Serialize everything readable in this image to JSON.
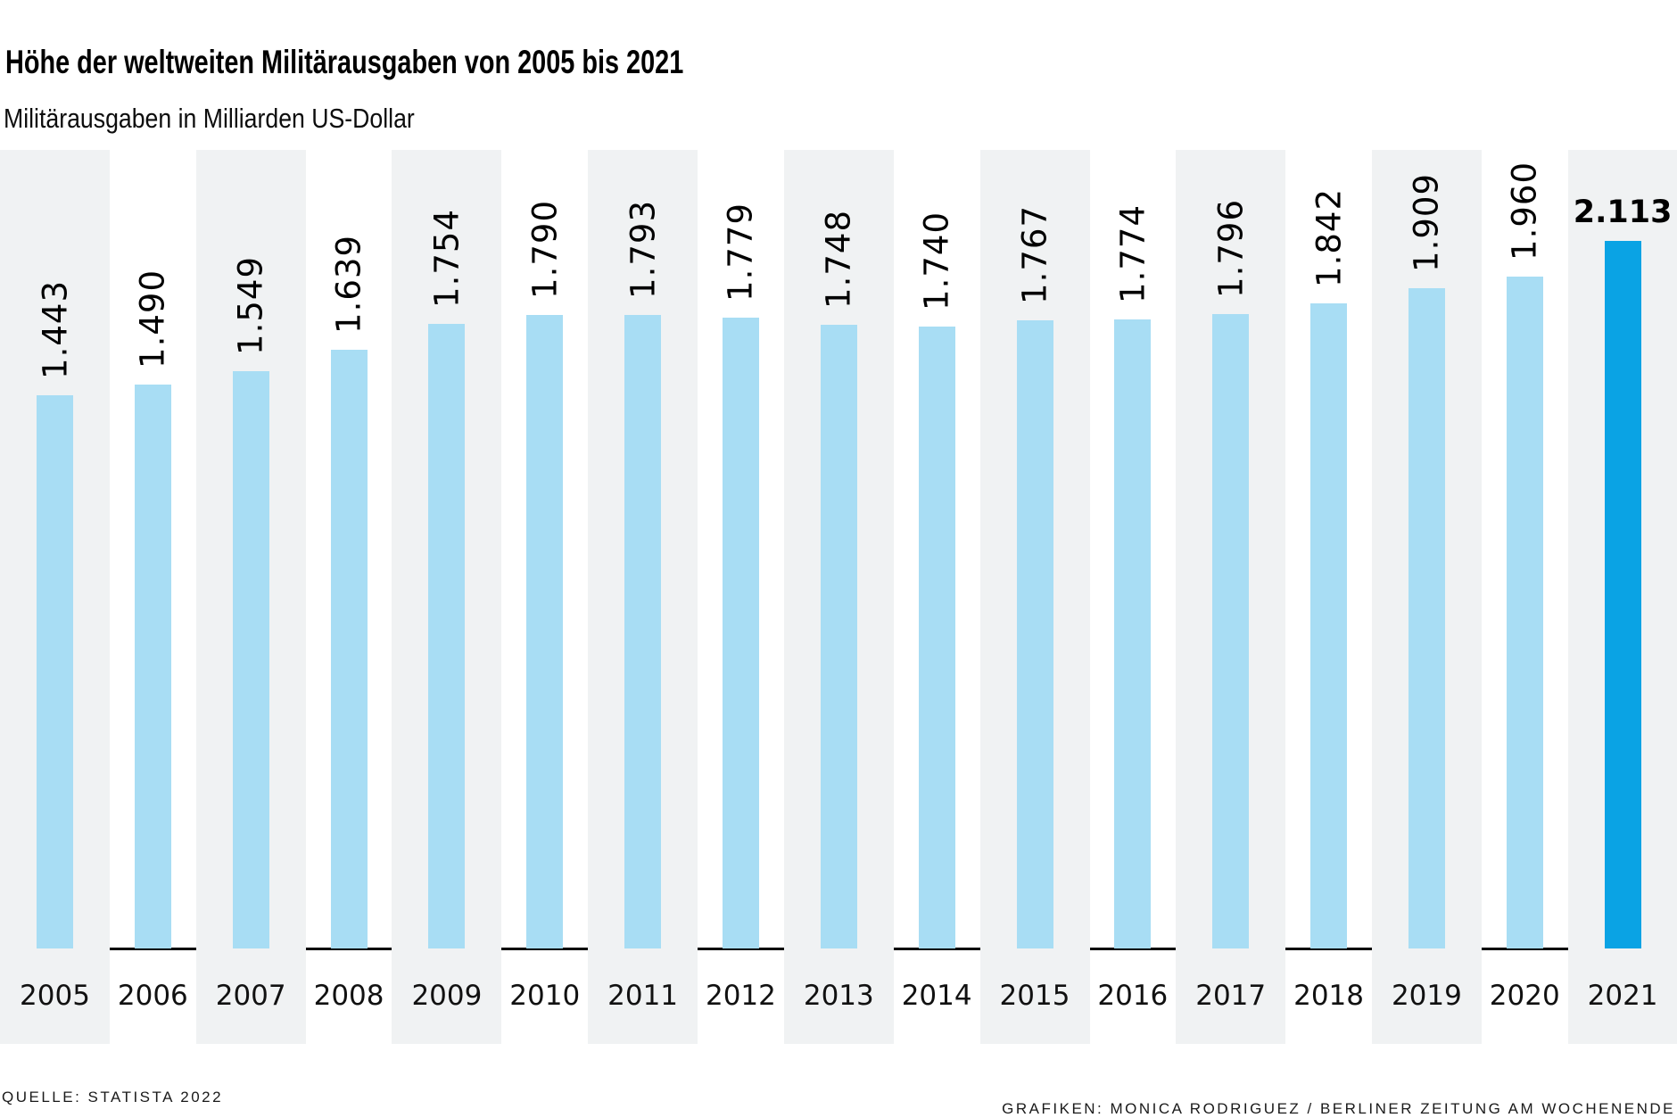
{
  "header": {
    "title": "Höhe der weltweiten Militärausgaben von 2005 bis 2021",
    "subtitle": "Militärausgaben in Milliarden US-Dollar"
  },
  "footer": {
    "source": "QUELLE: STATISTA 2022",
    "credit": "GRAFIKEN: MONICA RODRIGUEZ / BERLINER ZEITUNG AM WOCHENENDE"
  },
  "colors": {
    "bar": "#a8ddf4",
    "bar_highlight": "#0aa3e4",
    "column_stripe": "#f0f2f3",
    "axis": "#000000"
  },
  "chart_data": {
    "type": "bar",
    "title": "Höhe der weltweiten Militärausgaben von 2005 bis 2021",
    "ylabel": "Militärausgaben in Milliarden US-Dollar",
    "xlabel": "",
    "categories": [
      "2005",
      "2006",
      "2007",
      "2008",
      "2009",
      "2010",
      "2011",
      "2012",
      "2013",
      "2014",
      "2015",
      "2016",
      "2017",
      "2018",
      "2019",
      "2020",
      "2021"
    ],
    "values": [
      1443,
      1490,
      1549,
      1639,
      1754,
      1790,
      1793,
      1779,
      1748,
      1740,
      1767,
      1774,
      1796,
      1842,
      1909,
      1960,
      2113
    ],
    "value_labels": [
      "1.443",
      "1.490",
      "1.549",
      "1.639",
      "1.754",
      "1.790",
      "1.793",
      "1.779",
      "1.748",
      "1.740",
      "1.767",
      "1.774",
      "1.796",
      "1.842",
      "1.909",
      "1.960",
      "2.113"
    ],
    "highlight_index": 16,
    "grid": false,
    "legend": "none",
    "value_axis_hidden": true,
    "striped_background_columns": [
      "2005",
      "2007",
      "2009",
      "2011",
      "2013",
      "2015",
      "2017",
      "2019",
      "2021"
    ]
  }
}
